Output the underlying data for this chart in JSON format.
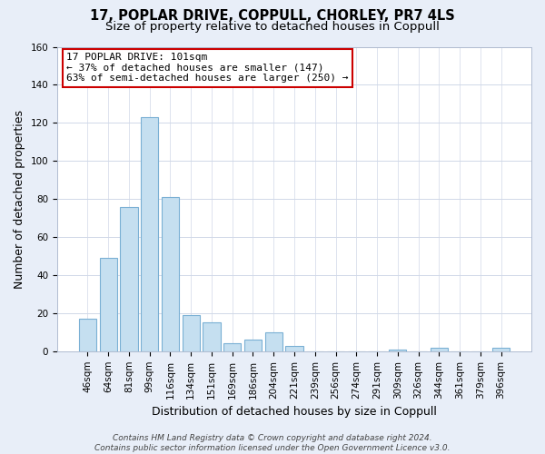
{
  "title": "17, POPLAR DRIVE, COPPULL, CHORLEY, PR7 4LS",
  "subtitle": "Size of property relative to detached houses in Coppull",
  "xlabel": "Distribution of detached houses by size in Coppull",
  "ylabel": "Number of detached properties",
  "bar_labels": [
    "46sqm",
    "64sqm",
    "81sqm",
    "99sqm",
    "116sqm",
    "134sqm",
    "151sqm",
    "169sqm",
    "186sqm",
    "204sqm",
    "221sqm",
    "239sqm",
    "256sqm",
    "274sqm",
    "291sqm",
    "309sqm",
    "326sqm",
    "344sqm",
    "361sqm",
    "379sqm",
    "396sqm"
  ],
  "bar_values": [
    17,
    49,
    76,
    123,
    81,
    19,
    15,
    4,
    6,
    10,
    3,
    0,
    0,
    0,
    0,
    1,
    0,
    2,
    0,
    0,
    2
  ],
  "bar_color": "#c5dff0",
  "bar_edge_color": "#7ab0d4",
  "ylim": [
    0,
    160
  ],
  "yticks": [
    0,
    20,
    40,
    60,
    80,
    100,
    120,
    140,
    160
  ],
  "annotation_title": "17 POPLAR DRIVE: 101sqm",
  "annotation_line1": "← 37% of detached houses are smaller (147)",
  "annotation_line2": "63% of semi-detached houses are larger (250) →",
  "annotation_box_color": "#ffffff",
  "annotation_box_edge": "#cc0000",
  "footer_line1": "Contains HM Land Registry data © Crown copyright and database right 2024.",
  "footer_line2": "Contains public sector information licensed under the Open Government Licence v3.0.",
  "background_color": "#e8eef8",
  "plot_background_color": "#ffffff",
  "grid_color": "#d0d8e8",
  "title_fontsize": 10.5,
  "subtitle_fontsize": 9.5,
  "axis_label_fontsize": 9,
  "tick_fontsize": 7.5,
  "footer_fontsize": 6.5
}
